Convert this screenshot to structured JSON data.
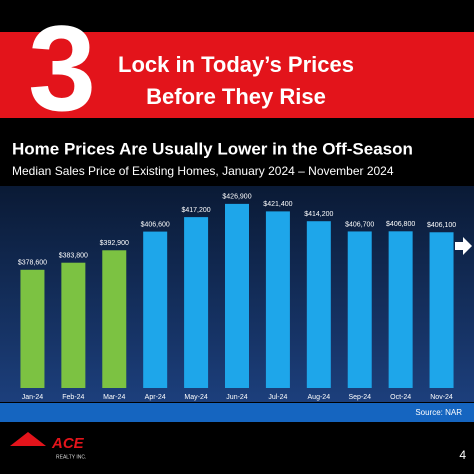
{
  "header": {
    "number": "3",
    "lines": [
      "Lock in Today’s Prices",
      "Before They Rise"
    ]
  },
  "chart_data": {
    "type": "bar",
    "title": "Home Prices Are Usually Lower in the Off-Season",
    "subtitle": "Median Sales Price of Existing Homes, January 2024 – November 2024",
    "source": "Source: NAR",
    "categories": [
      "Jan-24",
      "Feb-24",
      "Mar-24",
      "Apr-24",
      "May-24",
      "Jun-24",
      "Jul-24",
      "Aug-24",
      "Sep-24",
      "Oct-24",
      "Nov-24"
    ],
    "values": [
      378600,
      383800,
      392900,
      406600,
      417200,
      426900,
      421400,
      414200,
      406700,
      406800,
      406100
    ],
    "value_labels": [
      "$378,600",
      "$383,800",
      "$392,900",
      "$406,600",
      "$417,200",
      "$426,900",
      "$421,400",
      "$414,200",
      "$406,700",
      "$406,800",
      "$406,100"
    ],
    "colors": [
      "#7cc242",
      "#7cc242",
      "#7cc242",
      "#1ea6ea",
      "#1ea6ea",
      "#1ea6ea",
      "#1ea6ea",
      "#1ea6ea",
      "#1ea6ea",
      "#1ea6ea",
      "#1ea6ea"
    ],
    "ylim": [
      292000,
      440000
    ]
  },
  "footer": {
    "logo": "ACE",
    "logo_sub": "REALTY INC.",
    "page": "4"
  }
}
